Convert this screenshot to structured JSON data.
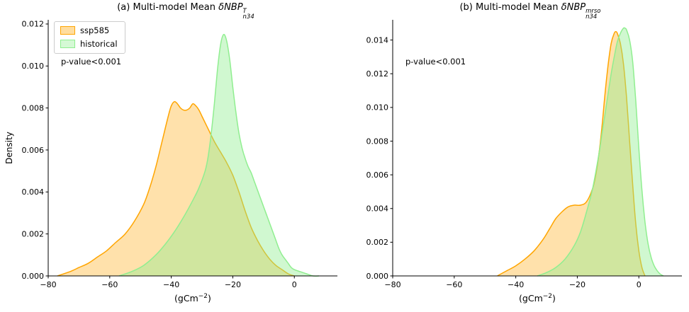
{
  "panels": [
    {
      "title_prefix": "(a) Multi-model Mean ",
      "title_math": "δNBP",
      "title_sup": "T",
      "title_sub": "n34",
      "ylabel": "Density",
      "xlabel_main": "(gCm",
      "xlabel_sup": "−2",
      "xlabel_close": ")",
      "annotation": "p-value<0.001",
      "legend": [
        {
          "label": "ssp585",
          "color": "#FFA500"
        },
        {
          "label": "historical",
          "color": "#90EE90"
        }
      ]
    },
    {
      "title_prefix": "(b) Multi-model Mean ",
      "title_math": "δNBP",
      "title_sup": "mrso",
      "title_sub": "n34",
      "xlabel_main": "(gCm",
      "xlabel_sup": "−2",
      "xlabel_close": ")",
      "annotation": "p-value<0.001"
    }
  ],
  "chart_data": [
    {
      "type": "area",
      "title": "(a) Multi-model Mean δNBP^T_n34",
      "xlabel": "(gCm−2)",
      "ylabel": "Density",
      "annotation": "p-value<0.001",
      "legend_position": "upper left",
      "grid": false,
      "xlim": [
        -80,
        14
      ],
      "ylim": [
        0,
        0.0122
      ],
      "xticks": [
        -80,
        -60,
        -40,
        -20,
        0
      ],
      "yticks": [
        0,
        0.002,
        0.004,
        0.006,
        0.008,
        0.01,
        0.012
      ],
      "series": [
        {
          "name": "ssp585",
          "color": "#FFA500",
          "fill_alpha": 0.33,
          "x": [
            -77,
            -73,
            -70,
            -67,
            -64,
            -61,
            -58,
            -55,
            -52,
            -49,
            -47,
            -45,
            -43,
            -41,
            -40,
            -39,
            -38,
            -37,
            -36,
            -35,
            -34,
            -33,
            -32,
            -31,
            -30,
            -28,
            -26,
            -24,
            -22,
            -20,
            -18,
            -16,
            -14,
            -12,
            -10,
            -8,
            -6,
            -4,
            -2,
            0
          ],
          "y": [
            0.0,
            0.0002,
            0.0004,
            0.0006,
            0.0009,
            0.0012,
            0.0016,
            0.002,
            0.0026,
            0.0034,
            0.0042,
            0.0052,
            0.0064,
            0.0076,
            0.0081,
            0.0083,
            0.0082,
            0.008,
            0.0079,
            0.0079,
            0.008,
            0.0082,
            0.0081,
            0.0079,
            0.0076,
            0.007,
            0.0064,
            0.0059,
            0.0054,
            0.0048,
            0.004,
            0.0031,
            0.0023,
            0.0017,
            0.0012,
            0.0008,
            0.0005,
            0.0003,
            0.0001,
            0.0
          ]
        },
        {
          "name": "historical",
          "color": "#90EE90",
          "fill_alpha": 0.42,
          "x": [
            -57,
            -53,
            -49,
            -45,
            -42,
            -39,
            -36,
            -33,
            -31,
            -29,
            -28,
            -27,
            -26,
            -25,
            -24,
            -23,
            -22,
            -21,
            -20,
            -19,
            -18,
            -17,
            -16,
            -15,
            -14,
            -13,
            -12,
            -11,
            -10,
            -9,
            -8,
            -7,
            -6,
            -5,
            -4,
            -3,
            -2,
            -1,
            0,
            2,
            4,
            6,
            8
          ],
          "y": [
            0.0,
            0.0002,
            0.0005,
            0.001,
            0.0015,
            0.0021,
            0.0028,
            0.0036,
            0.0042,
            0.005,
            0.0057,
            0.0068,
            0.0082,
            0.0098,
            0.011,
            0.0115,
            0.0112,
            0.0103,
            0.009,
            0.0078,
            0.0068,
            0.0061,
            0.0056,
            0.0052,
            0.0049,
            0.0045,
            0.0041,
            0.0037,
            0.0033,
            0.0029,
            0.0025,
            0.0021,
            0.0017,
            0.0013,
            0.001,
            0.0008,
            0.0006,
            0.0004,
            0.0003,
            0.0002,
            0.0001,
            0.0,
            0.0
          ]
        }
      ]
    },
    {
      "type": "area",
      "title": "(b) Multi-model Mean δNBP^mrso_n34",
      "xlabel": "(gCm−2)",
      "ylabel": "",
      "annotation": "p-value<0.001",
      "grid": false,
      "xlim": [
        -80,
        14
      ],
      "ylim": [
        0,
        0.0152
      ],
      "xticks": [
        -80,
        -60,
        -40,
        -20,
        0
      ],
      "yticks": [
        0,
        0.002,
        0.004,
        0.006,
        0.008,
        0.01,
        0.012,
        0.014
      ],
      "series": [
        {
          "name": "ssp585",
          "color": "#FFA500",
          "fill_alpha": 0.33,
          "x": [
            -46,
            -43,
            -40,
            -37,
            -34,
            -31,
            -29,
            -27,
            -25,
            -23,
            -21,
            -19,
            -17,
            -15,
            -14,
            -13,
            -12,
            -11,
            -10,
            -9,
            -8,
            -7.5,
            -7,
            -6,
            -5,
            -4,
            -3,
            -2,
            -1,
            0,
            1,
            2
          ],
          "y": [
            0.0,
            0.0003,
            0.0006,
            0.001,
            0.0015,
            0.0022,
            0.0028,
            0.0034,
            0.0038,
            0.0041,
            0.0042,
            0.0042,
            0.0044,
            0.0052,
            0.006,
            0.0072,
            0.0088,
            0.0108,
            0.0125,
            0.0138,
            0.0144,
            0.0145,
            0.0144,
            0.0138,
            0.0126,
            0.0106,
            0.008,
            0.0054,
            0.0031,
            0.0015,
            0.0005,
            0.0
          ]
        },
        {
          "name": "historical",
          "color": "#90EE90",
          "fill_alpha": 0.42,
          "x": [
            -33,
            -30,
            -27,
            -24,
            -21,
            -19,
            -17,
            -15,
            -13,
            -12,
            -11,
            -10,
            -9,
            -8,
            -7,
            -6,
            -5,
            -4.5,
            -4,
            -3,
            -2,
            -1,
            0,
            1,
            2,
            3,
            4,
            5,
            6,
            7,
            8
          ],
          "y": [
            0.0,
            0.0002,
            0.0005,
            0.001,
            0.0018,
            0.0026,
            0.0038,
            0.0052,
            0.0072,
            0.0084,
            0.0096,
            0.0108,
            0.012,
            0.013,
            0.0139,
            0.0144,
            0.0147,
            0.0147,
            0.0146,
            0.014,
            0.0127,
            0.0104,
            0.0076,
            0.0051,
            0.0032,
            0.0019,
            0.0011,
            0.0006,
            0.0003,
            0.0001,
            0.0
          ]
        }
      ]
    }
  ]
}
